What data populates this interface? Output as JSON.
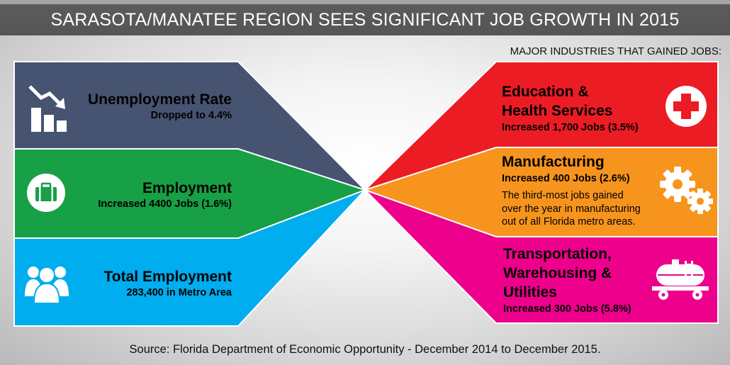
{
  "title": "SARASOTA/MANATEE REGION SEES SIGNIFICANT JOB GROWTH IN 2015",
  "major_industries_label": "MAJOR INDUSTRIES THAT GAINED JOBS:",
  "left": {
    "unemployment": {
      "title": "Unemployment Rate",
      "subtitle": "Dropped to 4.4%",
      "icon": "declining-bar-chart-icon",
      "color": "#465371"
    },
    "employment": {
      "title": "Employment",
      "subtitle": "Increased 4400 Jobs (1.6%)",
      "icon": "briefcase-icon",
      "color": "#17a045"
    },
    "total_employment": {
      "title": "Total Employment",
      "subtitle": "283,400 in Metro Area",
      "icon": "people-group-icon",
      "color": "#00adee"
    }
  },
  "right": {
    "education": {
      "title_line1": "Education &",
      "title_line2": "Health Services",
      "subtitle": "Increased 1,700 Jobs (3.5%)",
      "icon": "medical-cross-icon",
      "color": "#ec1c24"
    },
    "manufacturing": {
      "title": "Manufacturing",
      "subtitle": "Increased 400 Jobs (2.6%)",
      "note_line1": "The third-most jobs gained",
      "note_line2": "over the year in manufacturing",
      "note_line3": "out of all Florida metro areas.",
      "icon": "gears-icon",
      "color": "#f7941d"
    },
    "transportation": {
      "title_line1": "Transportation,",
      "title_line2": "Warehousing &",
      "title_line3": "Utilities",
      "subtitle": "Increased 300 Jobs (5.8%)",
      "icon": "tanker-railcar-icon",
      "color": "#ec008c"
    }
  },
  "source": "Source: Florida Department of Economic Opportunity - December 2014 to December 2015."
}
